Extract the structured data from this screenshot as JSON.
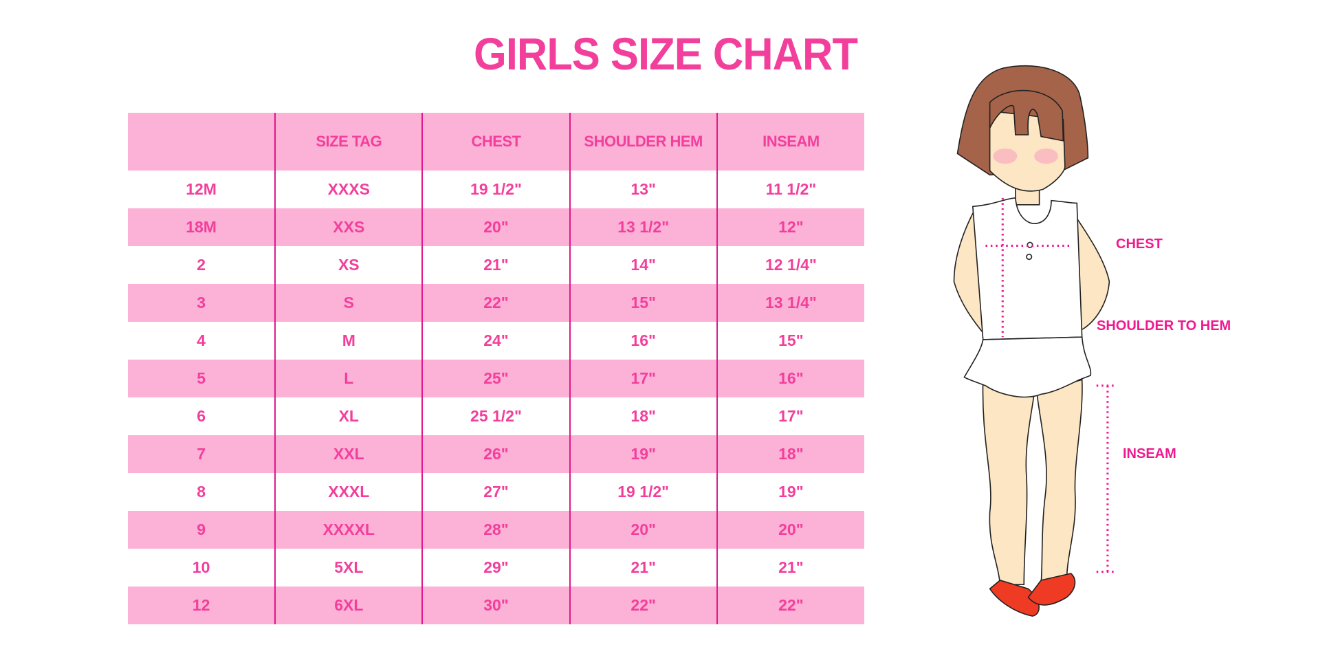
{
  "title": "GIRLS SIZE CHART",
  "table": {
    "headers": [
      "",
      "SIZE TAG",
      "CHEST",
      "SHOULDER HEM",
      "INSEAM"
    ],
    "rows": [
      [
        "12M",
        "XXXS",
        "19 1/2\"",
        "13\"",
        "11 1/2\""
      ],
      [
        "18M",
        "XXS",
        "20\"",
        "13 1/2\"",
        "12\""
      ],
      [
        "2",
        "XS",
        "21\"",
        "14\"",
        "12 1/4\""
      ],
      [
        "3",
        "S",
        "22\"",
        "15\"",
        "13 1/4\""
      ],
      [
        "4",
        "M",
        "24\"",
        "16\"",
        "15\""
      ],
      [
        "5",
        "L",
        "25\"",
        "17\"",
        "16\""
      ],
      [
        "6",
        "XL",
        "25 1/2\"",
        "18\"",
        "17\""
      ],
      [
        "7",
        "XXL",
        "26\"",
        "19\"",
        "18\""
      ],
      [
        "8",
        "XXXL",
        "27\"",
        "19 1/2\"",
        "19\""
      ],
      [
        "9",
        "XXXXL",
        "28\"",
        "20\"",
        "20\""
      ],
      [
        "10",
        "5XL",
        "29\"",
        "21\"",
        "21\""
      ],
      [
        "12",
        "6XL",
        "30\"",
        "22\"",
        "22\""
      ]
    ]
  },
  "figure": {
    "labels": {
      "chest": "CHEST",
      "shoulder_to_hem": "SHOULDER TO HEM",
      "inseam": "INSEAM"
    }
  },
  "colors": {
    "text_pink": "#f23f9c",
    "row_pink": "#fcb1d6",
    "divider": "#e0198a",
    "measure_pink": "#f0198f"
  }
}
